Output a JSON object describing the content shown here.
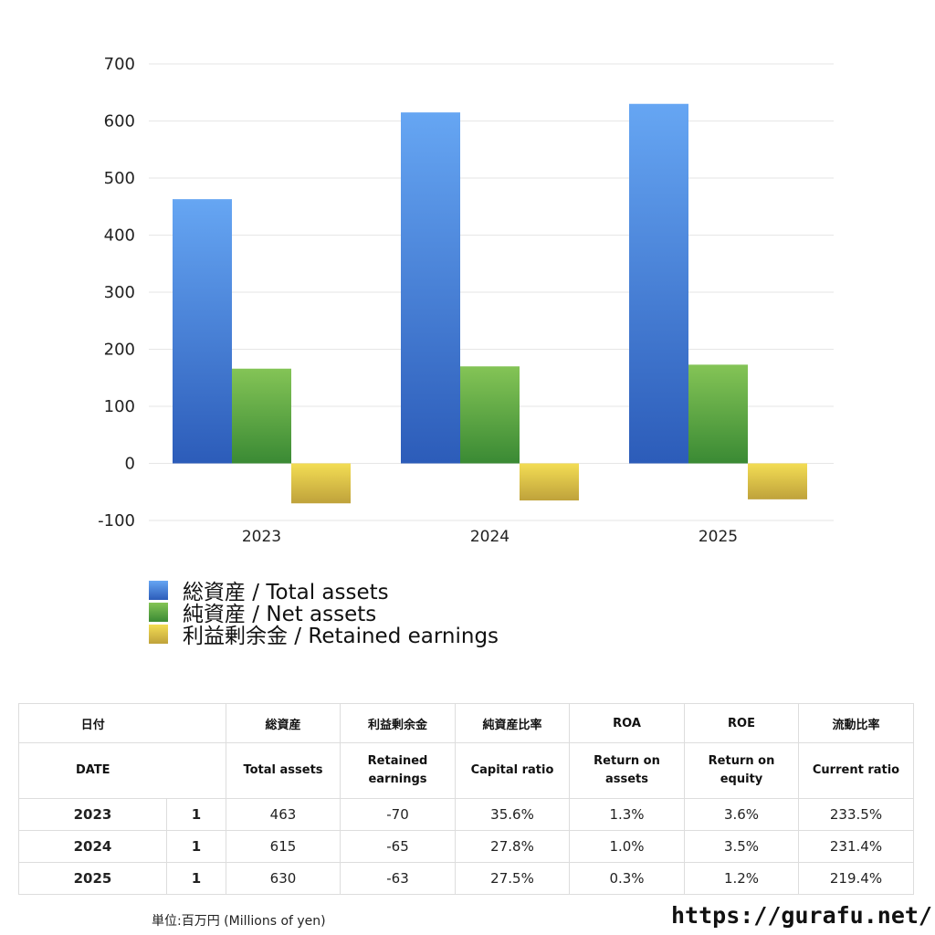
{
  "chart_data": {
    "type": "bar",
    "categories": [
      "2023",
      "2024",
      "2025"
    ],
    "series": [
      {
        "name": "総資産 / Total assets",
        "values": [
          463,
          615,
          630
        ],
        "color_top": "#66a6f3",
        "color_bottom": "#2c5cb9"
      },
      {
        "name": "純資産 / Net assets",
        "values": [
          166,
          170,
          173
        ],
        "color_top": "#84c456",
        "color_bottom": "#3a8a34"
      },
      {
        "name": "利益剰余金 / Retained earnings",
        "values": [
          -70,
          -65,
          -63
        ],
        "color_top": "#f3dd54",
        "color_bottom": "#bfa23b"
      }
    ],
    "ylim": [
      -100,
      700
    ],
    "yticks": [
      "700",
      "600",
      "500",
      "400",
      "300",
      "200",
      "100",
      "0",
      "-100"
    ],
    "ytick_values": [
      700,
      600,
      500,
      400,
      300,
      200,
      100,
      0,
      -100
    ],
    "grid": true,
    "legend_position": "bottom-left"
  },
  "table": {
    "headers_jp": [
      "日付",
      "総資産",
      "利益剰余金",
      "純資産比率",
      "ROA",
      "ROE",
      "流動比率"
    ],
    "headers_en": [
      "DATE",
      "Total assets",
      "Retained earnings",
      "Capital ratio",
      "Return on assets",
      "Return on equity",
      "Current ratio"
    ],
    "rows": [
      {
        "year": "2023",
        "seq": "1",
        "total_assets": "463",
        "retained": "-70",
        "capital_ratio": "35.6%",
        "roa": "1.3%",
        "roe": "3.6%",
        "current_ratio": "233.5%"
      },
      {
        "year": "2024",
        "seq": "1",
        "total_assets": "615",
        "retained": "-65",
        "capital_ratio": "27.8%",
        "roa": "1.0%",
        "roe": "3.5%",
        "current_ratio": "231.4%"
      },
      {
        "year": "2025",
        "seq": "1",
        "total_assets": "630",
        "retained": "-63",
        "capital_ratio": "27.5%",
        "roa": "0.3%",
        "roe": "1.2%",
        "current_ratio": "219.4%"
      }
    ]
  },
  "footer": {
    "unit_note": "単位:百万円 (Millions of yen)",
    "site_url": "https://gurafu.net/"
  },
  "colors": {
    "negative_text": "#d9442a",
    "grid": "#e6e6e6",
    "table_border": "#dddddd"
  }
}
